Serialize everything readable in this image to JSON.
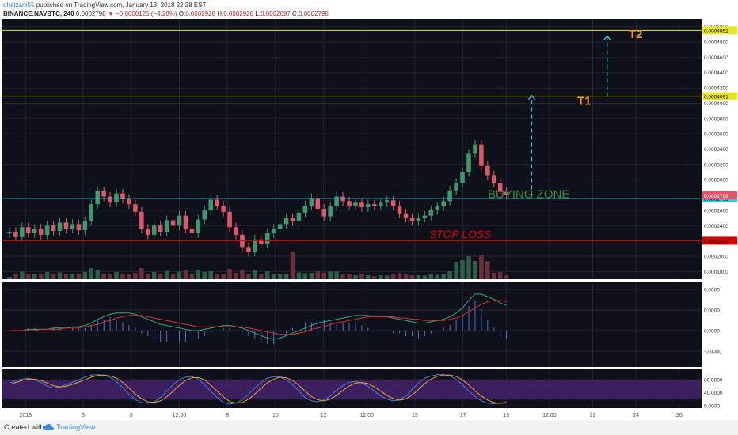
{
  "header": {
    "author": "dhatzam55",
    "published": " published on TradingView.com, January 13, 2018 22:28 EST",
    "symbol": "BINANCE:NAVBTC, 240",
    "last": "0.0002798",
    "change": "−0.0000125 (−4.28%)",
    "o_label": "O:",
    "o": "0.0002928",
    "h_label": "H:",
    "h": "0.0002928",
    "l_label": "L:",
    "l": "0.0002697",
    "c_label": "C:",
    "c": "0.0002798"
  },
  "footer": {
    "created": "Created with",
    "brand": "TradingView"
  },
  "colors": {
    "background": "#0e111a",
    "grid": "#222633",
    "up": "#3d9970",
    "down": "#e0576a",
    "yellow": "#e6e620",
    "stop": "#d90000",
    "cyan": "#39c6d6",
    "target": "#f59a23",
    "buy_zone": "#2f8f46",
    "stoch_band": "#3b1f5e"
  },
  "chart_data": [
    {
      "type": "candlestick",
      "ylim": [
        0.00017,
        0.00051
      ],
      "y_ticks": [
        "0.0001800",
        "0.0002000",
        "0.0002200",
        "0.0002400",
        "0.0002600",
        "0.0002800",
        "0.0003000",
        "0.0003200",
        "0.0003400",
        "0.0003600",
        "0.0003800",
        "0.0004000",
        "0.0004200",
        "0.0004400",
        "0.0004600",
        "0.0004800",
        "0.0005000"
      ],
      "x_ticks": [
        "2018",
        "3",
        "5",
        "12:00",
        "8",
        "10",
        "12",
        "12:00",
        "15",
        "17",
        "19",
        "12:00",
        "22",
        "24",
        "26"
      ],
      "bars": 80,
      "close": [
        0.000232,
        0.000225,
        0.000238,
        0.00023,
        0.000236,
        0.000228,
        0.00024,
        0.000233,
        0.000244,
        0.000236,
        0.000242,
        0.000234,
        0.000246,
        0.000268,
        0.000285,
        0.000278,
        0.00027,
        0.000282,
        0.000275,
        0.000268,
        0.000258,
        0.000236,
        0.000228,
        0.00024,
        0.000232,
        0.000247,
        0.00024,
        0.000253,
        0.000236,
        0.00023,
        0.000248,
        0.00026,
        0.000274,
        0.000266,
        0.000258,
        0.000238,
        0.000228,
        0.000212,
        0.000206,
        0.000222,
        0.000216,
        0.00023,
        0.000236,
        0.000242,
        0.00025,
        0.000246,
        0.000257,
        0.000266,
        0.000276,
        0.000262,
        0.000252,
        0.000265,
        0.000278,
        0.000272,
        0.000266,
        0.00027,
        0.000264,
        0.000268,
        0.000266,
        0.00027,
        0.000273,
        0.000266,
        0.000256,
        0.00025,
        0.000246,
        0.00025,
        0.000253,
        0.00026,
        0.000265,
        0.000272,
        0.000286,
        0.000296,
        0.00031,
        0.000334,
        0.000346,
        0.000318,
        0.000306,
        0.000296,
        0.000284,
        0.00028
      ],
      "levels": [
        {
          "name": "T2",
          "value": 0.0004952,
          "color": "yellow",
          "label": "0.0004952"
        },
        {
          "name": "T1",
          "value": 0.0004091,
          "color": "yellow",
          "label": "0.0004091"
        },
        {
          "name": "BUYING ZONE",
          "value": 0.0002753,
          "color": "cyan",
          "label": "0.0002753"
        },
        {
          "name": "STOP LOSS",
          "value": 0.0002202,
          "color": "stop",
          "label": "0.0002202"
        }
      ],
      "price_label": "0.0002798",
      "annotations": {
        "t1": "T1",
        "t2": "T2",
        "buy": "BUYING ZONE",
        "stop": "STOP LOSS"
      },
      "target_arrows": [
        {
          "x_index": 83,
          "from": 0.000278,
          "to": 0.00041
        },
        {
          "x_index": 95,
          "from": 0.000408,
          "to": 0.000488
        }
      ]
    },
    {
      "type": "line",
      "name_text": "",
      "y_ticks": [
        "0.0000",
        "0.0000",
        "0.0000",
        "-0.0000"
      ],
      "macd": [
        0,
        0,
        0,
        1,
        1,
        1,
        1,
        2,
        2,
        2,
        3,
        3,
        4,
        6,
        9,
        11,
        13,
        14,
        14,
        14,
        13,
        11,
        9,
        7,
        5,
        4,
        3,
        2,
        1,
        0,
        0,
        1,
        2,
        3,
        4,
        4,
        3,
        2,
        0,
        -2,
        -4,
        -6,
        -7,
        -6,
        -4,
        -2,
        0,
        2,
        4,
        6,
        7,
        8,
        9,
        10,
        11,
        12,
        12,
        12,
        11,
        11,
        11,
        10,
        9,
        8,
        7,
        6,
        6,
        7,
        8,
        9,
        11,
        14,
        18,
        24,
        29,
        29,
        27,
        25,
        22,
        20
      ],
      "signal": [
        0,
        0,
        0,
        0,
        0,
        1,
        1,
        1,
        1,
        2,
        2,
        2,
        3,
        4,
        5,
        7,
        8,
        10,
        11,
        12,
        12,
        12,
        11,
        10,
        9,
        8,
        7,
        6,
        5,
        4,
        3,
        3,
        3,
        3,
        3,
        3,
        3,
        3,
        2,
        1,
        0,
        -1,
        -2,
        -3,
        -3,
        -3,
        -2,
        -1,
        1,
        2,
        3,
        5,
        6,
        7,
        8,
        9,
        10,
        11,
        11,
        11,
        11,
        11,
        10,
        10,
        9,
        9,
        8,
        8,
        8,
        8,
        9,
        10,
        12,
        15,
        18,
        21,
        23,
        24,
        24,
        23
      ]
    },
    {
      "type": "line",
      "y_ticks": [
        "80.0000",
        "40.0000",
        "0.0000"
      ],
      "k": [
        70,
        78,
        82,
        85,
        80,
        72,
        60,
        55,
        58,
        65,
        72,
        80,
        88,
        95,
        96,
        94,
        88,
        75,
        55,
        35,
        18,
        10,
        8,
        12,
        25,
        45,
        65,
        80,
        88,
        90,
        82,
        65,
        45,
        25,
        10,
        5,
        8,
        18,
        35,
        55,
        72,
        85,
        90,
        88,
        80,
        65,
        45,
        25,
        15,
        12,
        18,
        30,
        48,
        62,
        72,
        75,
        70,
        60,
        45,
        30,
        20,
        15,
        18,
        30,
        50,
        70,
        85,
        92,
        96,
        96,
        92,
        82,
        65,
        45,
        28,
        15,
        8,
        6,
        8,
        12
      ],
      "d": [
        65,
        72,
        78,
        82,
        82,
        78,
        70,
        62,
        58,
        60,
        66,
        73,
        80,
        88,
        93,
        95,
        92,
        85,
        72,
        55,
        36,
        21,
        12,
        10,
        15,
        27,
        45,
        63,
        78,
        86,
        87,
        80,
        64,
        45,
        27,
        13,
        8,
        10,
        20,
        36,
        54,
        71,
        82,
        88,
        86,
        78,
        63,
        45,
        28,
        18,
        15,
        20,
        32,
        47,
        61,
        70,
        72,
        68,
        58,
        45,
        32,
        22,
        17,
        21,
        33,
        50,
        68,
        82,
        91,
        95,
        95,
        90,
        80,
        64,
        46,
        30,
        17,
        10,
        7,
        9
      ]
    }
  ]
}
